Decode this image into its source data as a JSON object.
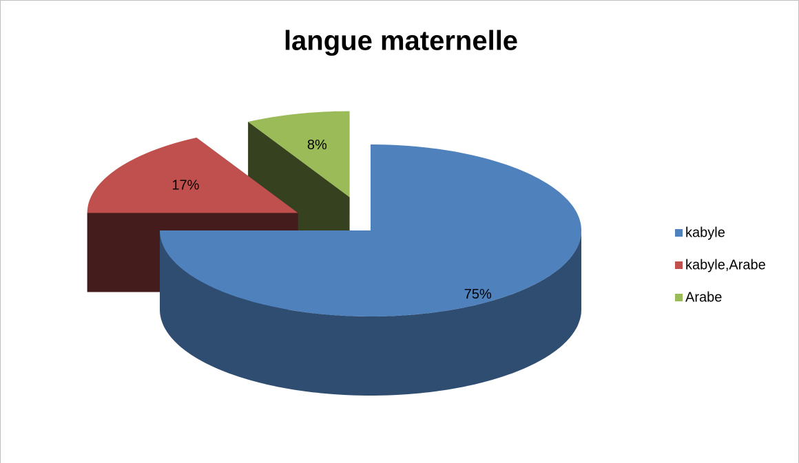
{
  "chart_data": {
    "type": "pie",
    "title": "langue maternelle",
    "categories": [
      "kabyle",
      "kabyle,Arabe",
      "Arabe"
    ],
    "values": [
      75,
      17,
      8
    ],
    "value_labels": [
      "75%",
      "17%",
      "8%"
    ],
    "colors": [
      "#4f81bd",
      "#c0504d",
      "#9bbb59"
    ],
    "legend": "right"
  }
}
